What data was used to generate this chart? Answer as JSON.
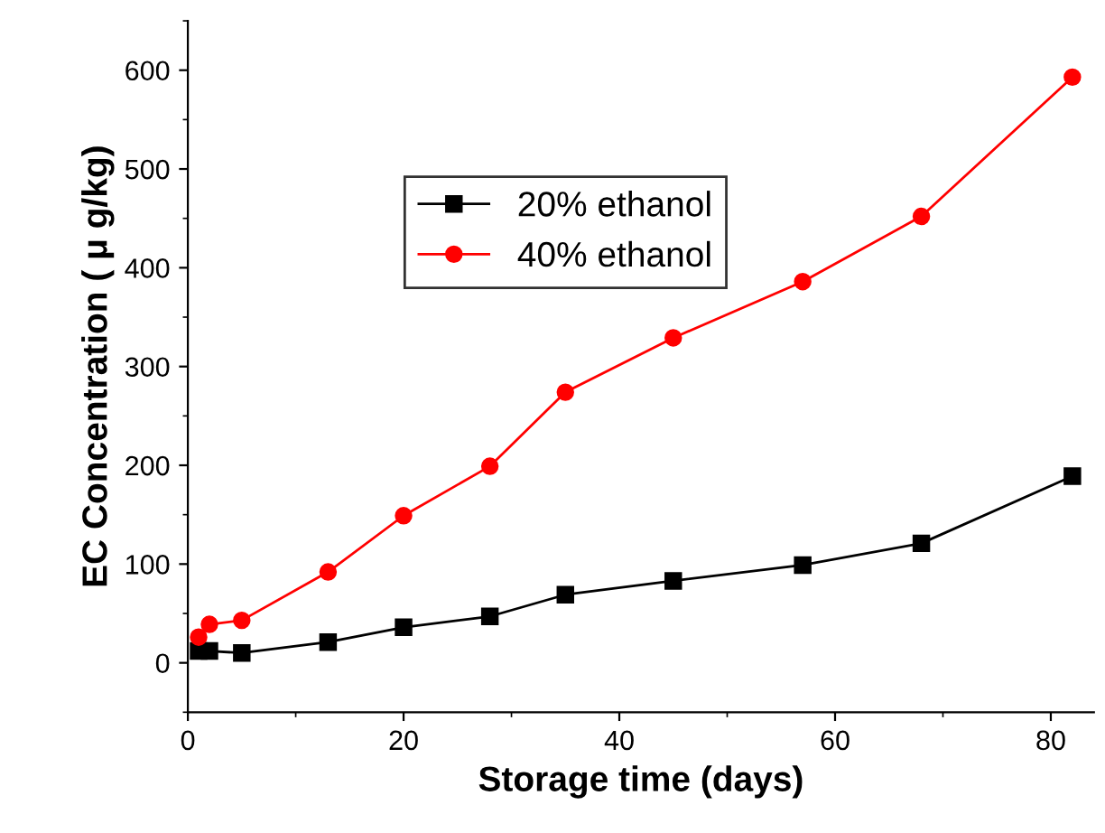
{
  "chart_data": {
    "type": "line",
    "xlabel": "Storage time (days)",
    "ylabel": "EC Concentration ( μ g/kg)",
    "x": [
      1,
      2,
      5,
      13,
      20,
      28,
      35,
      45,
      57,
      68,
      82
    ],
    "series": [
      {
        "name": "20% ethanol",
        "color": "#000000",
        "marker": "square",
        "values": [
          12,
          12,
          10,
          21,
          36,
          47,
          69,
          83,
          99,
          121,
          189
        ]
      },
      {
        "name": "40% ethanol",
        "color": "#ff0000",
        "marker": "circle",
        "values": [
          26,
          39,
          43,
          92,
          149,
          199,
          274,
          329,
          386,
          452,
          593
        ]
      }
    ],
    "xlim": [
      0,
      84
    ],
    "xticks": [
      0,
      20,
      40,
      60,
      80
    ],
    "ylim": [
      -50,
      650
    ],
    "yticks": [
      0,
      100,
      200,
      300,
      400,
      500,
      600
    ],
    "grid": false,
    "legend": "top left",
    "line_style": "solid"
  }
}
